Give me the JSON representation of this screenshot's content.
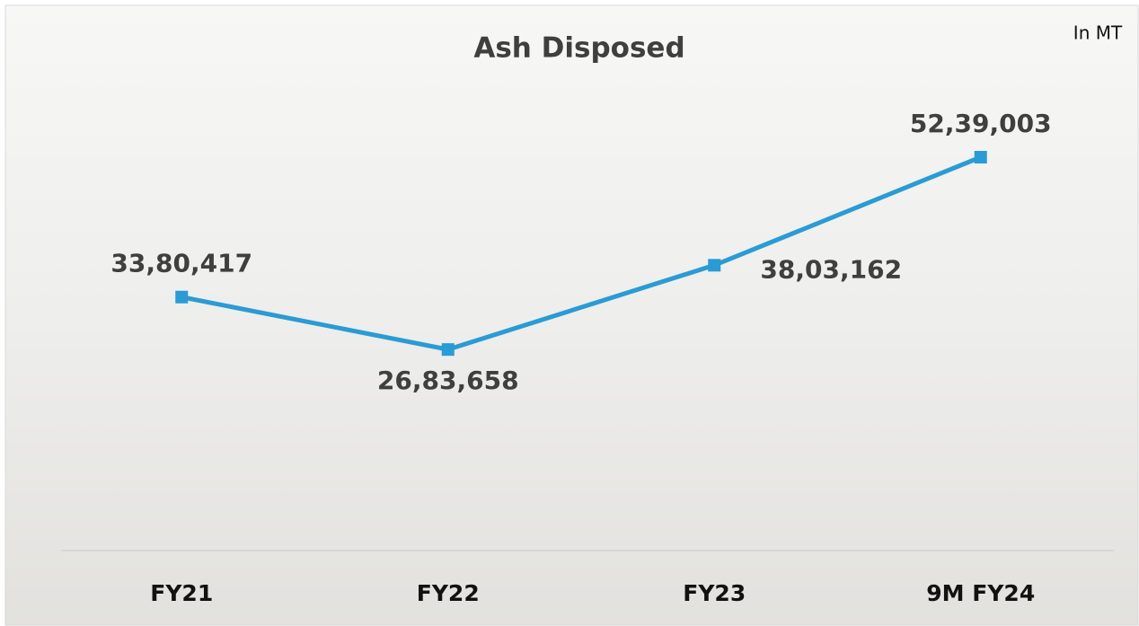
{
  "chart_data": {
    "type": "line",
    "title": "Ash Disposed",
    "subtitle": "In MT",
    "categories": [
      "FY21",
      "FY22",
      "FY23",
      "9M FY24"
    ],
    "values": [
      3380417,
      2683658,
      3803162,
      5239003
    ],
    "value_labels": [
      "33,80,417",
      "26,83,658",
      "38,03,162",
      "52,39,003"
    ],
    "color": "#2a9bd4"
  }
}
